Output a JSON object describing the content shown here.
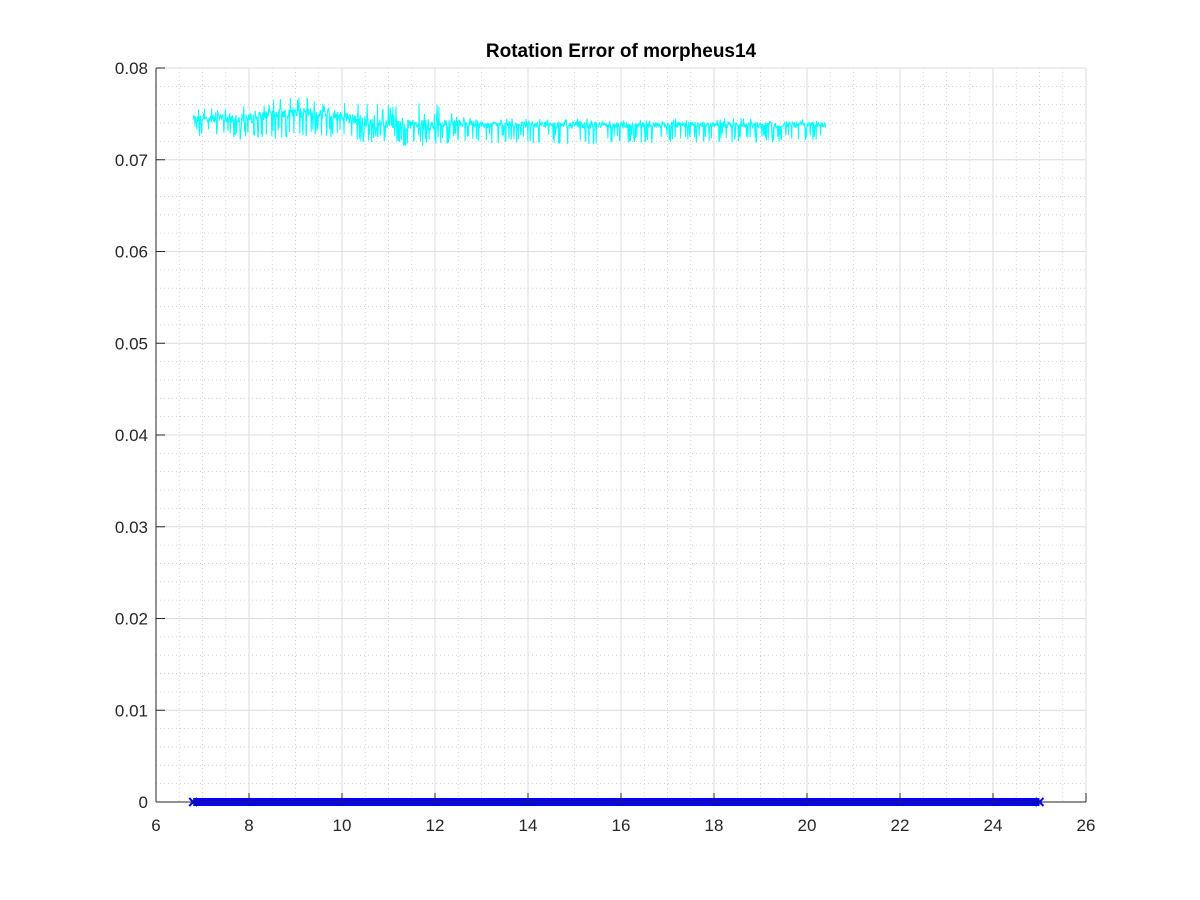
{
  "chart_data": {
    "type": "line",
    "title": "Rotation Error of morpheus14",
    "xlabel": "",
    "ylabel": "",
    "xlim": [
      6,
      26
    ],
    "ylim": [
      0,
      0.08
    ],
    "x_ticks": [
      6,
      8,
      10,
      12,
      14,
      16,
      18,
      20,
      22,
      24,
      26
    ],
    "x_tick_labels": [
      "6",
      "8",
      "10",
      "12",
      "14",
      "16",
      "18",
      "20",
      "22",
      "24",
      "26"
    ],
    "y_ticks": [
      0,
      0.01,
      0.02,
      0.03,
      0.04,
      0.05,
      0.06,
      0.07,
      0.08
    ],
    "y_tick_labels": [
      "0",
      "0.01",
      "0.02",
      "0.03",
      "0.04",
      "0.05",
      "0.06",
      "0.07",
      "0.08"
    ],
    "grid": true,
    "minor_grid": true,
    "legend": "none",
    "series": [
      {
        "color": "#00ffff",
        "style": "noisy-line",
        "x": [
          6.8,
          7.0,
          7.5,
          8.0,
          8.5,
          9.0,
          9.5,
          10.0,
          10.5,
          11.0,
          11.5,
          12.0,
          12.5,
          13.0,
          13.5,
          14.0,
          14.5,
          15.0,
          15.5,
          16.0,
          16.5,
          17.0,
          17.5,
          18.0,
          18.5,
          19.0,
          19.5,
          20.0,
          20.4
        ],
        "y": [
          0.0745,
          0.0745,
          0.0745,
          0.0745,
          0.075,
          0.0752,
          0.075,
          0.0748,
          0.074,
          0.0738,
          0.0738,
          0.0738,
          0.074,
          0.0738,
          0.0738,
          0.0738,
          0.0738,
          0.0738,
          0.0738,
          0.0738,
          0.0738,
          0.0738,
          0.0738,
          0.0738,
          0.0738,
          0.0738,
          0.0738,
          0.0738,
          0.0738
        ],
        "y_min": [
          0.0728,
          0.0725,
          0.0722,
          0.0722,
          0.0722,
          0.0725,
          0.0725,
          0.0723,
          0.0718,
          0.0715,
          0.0715,
          0.0715,
          0.0718,
          0.0718,
          0.0718,
          0.0718,
          0.0718,
          0.0712,
          0.0718,
          0.0718,
          0.0718,
          0.0718,
          0.0718,
          0.0718,
          0.0718,
          0.0718,
          0.0718,
          0.0718,
          0.0718
        ],
        "y_max": [
          0.0755,
          0.0757,
          0.0762,
          0.0762,
          0.0765,
          0.077,
          0.0765,
          0.0775,
          0.0762,
          0.0762,
          0.076,
          0.0765,
          0.0748,
          0.0745,
          0.0745,
          0.0745,
          0.0745,
          0.0745,
          0.0745,
          0.0745,
          0.0745,
          0.0745,
          0.0745,
          0.0745,
          0.0745,
          0.0745,
          0.0745,
          0.0745,
          0.0745
        ]
      },
      {
        "color": "#0000ff",
        "style": "thick-line",
        "x": [
          6.8,
          25.0
        ],
        "y": [
          0,
          0
        ]
      }
    ]
  }
}
